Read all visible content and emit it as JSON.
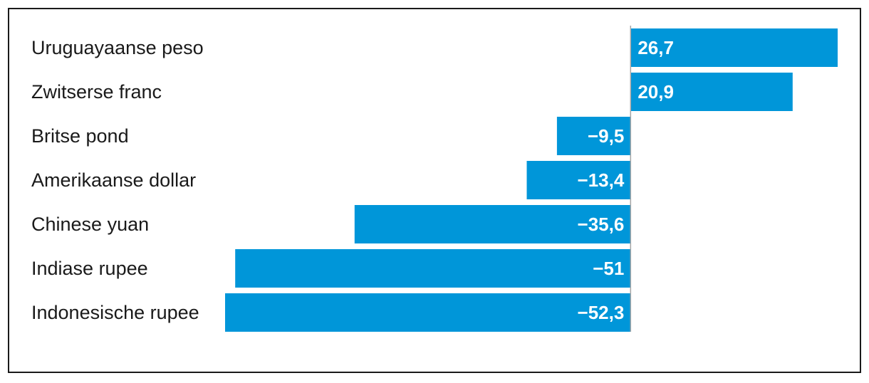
{
  "chart_data": {
    "type": "bar",
    "orientation": "horizontal",
    "categories": [
      "Uruguayaanse peso",
      "Zwitserse franc",
      "Britse pond",
      "Amerikaanse dollar",
      "Chinese yuan",
      "Indiase rupee",
      "Indonesische rupee"
    ],
    "values": [
      26.7,
      20.9,
      -9.5,
      -13.4,
      -35.6,
      -51,
      -52.3
    ],
    "value_labels": [
      "26,7",
      "20,9",
      "−9,5",
      "−13,4",
      "−35,6",
      "−51",
      "−52,3"
    ],
    "title": "",
    "xlabel": "",
    "ylabel": "",
    "xlim": [
      -52.3,
      26.7
    ],
    "grid": false,
    "bar_color": "#0096d9",
    "axis_color": "#a6a6a6"
  }
}
